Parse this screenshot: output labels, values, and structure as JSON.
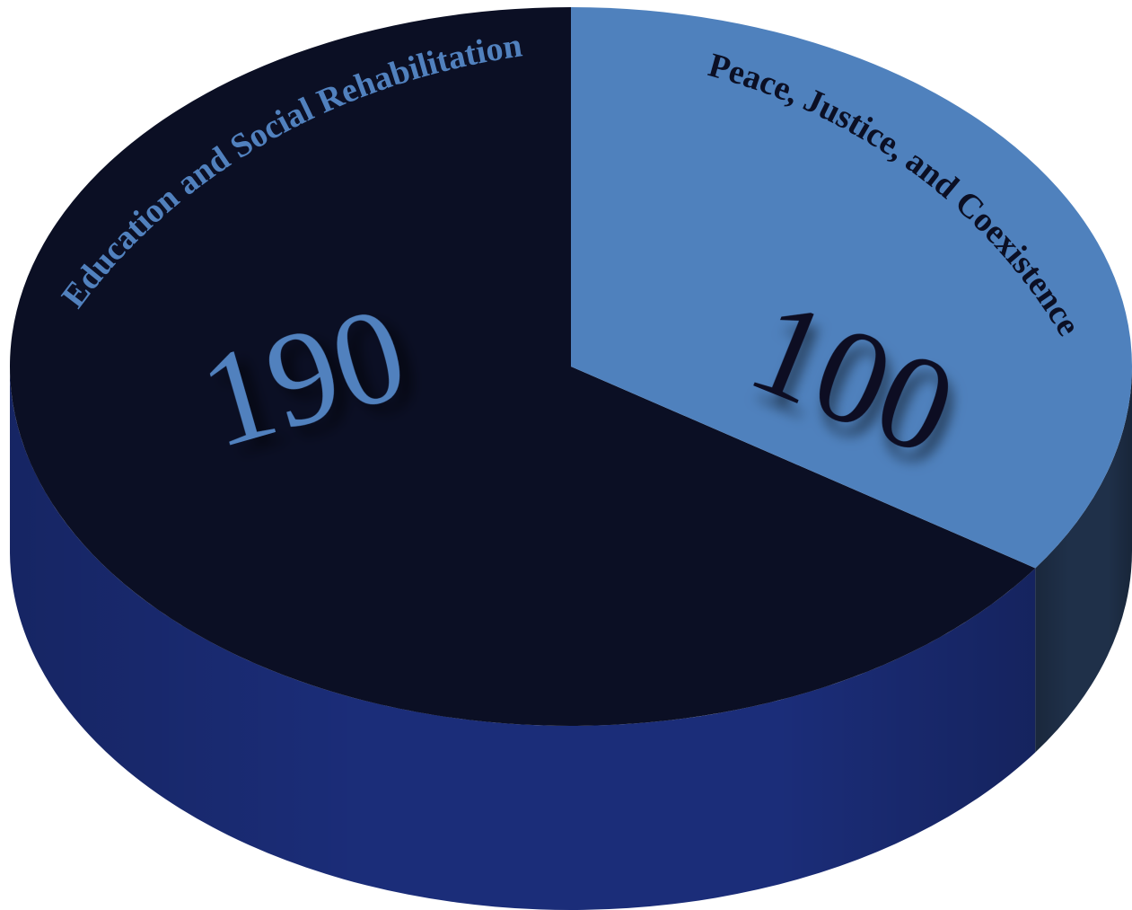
{
  "chart_data": {
    "type": "pie",
    "style": "3d",
    "title": "",
    "slices": [
      {
        "label": "Education and Social Rehabilitation",
        "value": 190,
        "value_label": "190",
        "top_color": "#0b0f24",
        "side_color": "#1b2d79",
        "label_color": "#5181be"
      },
      {
        "label": "Peace, Justice, and Coexistence",
        "value": 100,
        "value_label": "100",
        "top_color": "#4f81bd",
        "side_color": "#1f3049",
        "label_color": "#0b0f24"
      }
    ]
  }
}
